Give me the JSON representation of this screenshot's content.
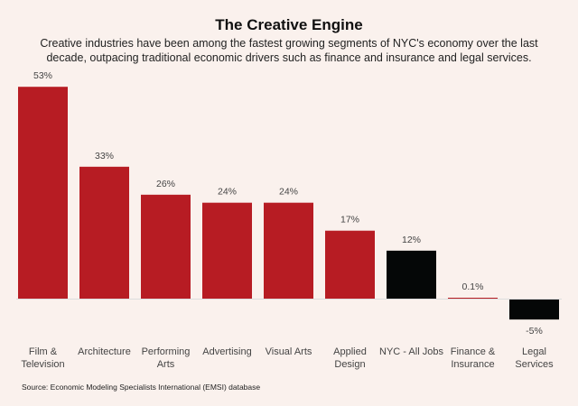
{
  "title": "The Creative Engine",
  "subtitle": "Creative industries have been among the fastest growing segments of NYC's economy over the last decade, outpacing traditional economic drivers such as finance and insurance and legal services.",
  "source": "Source:  Economic Modeling Specialists International (EMSI) database",
  "chart_data": {
    "type": "bar",
    "title": "The Creative Engine",
    "categories": [
      [
        "Film &",
        "Television"
      ],
      [
        "Architecture"
      ],
      [
        "Performing",
        "Arts"
      ],
      [
        "Advertising"
      ],
      [
        "Visual Arts"
      ],
      [
        "Applied",
        "Design"
      ],
      [
        "NYC - All Jobs"
      ],
      [
        "Finance &",
        "Insurance"
      ],
      [
        "Legal",
        "Services"
      ]
    ],
    "values": [
      53,
      33,
      26,
      24,
      24,
      17,
      12,
      0.1,
      -5
    ],
    "value_labels": [
      "53%",
      "33%",
      "26%",
      "24%",
      "24%",
      "17%",
      "12%",
      "0.1%",
      "-5%"
    ],
    "colors": [
      "#b71c23",
      "#b71c23",
      "#b71c23",
      "#b71c23",
      "#b71c23",
      "#b71c23",
      "#050707",
      "#b71c23",
      "#050707"
    ],
    "ylim": [
      -5,
      53
    ],
    "grid": false,
    "legend": "none"
  }
}
